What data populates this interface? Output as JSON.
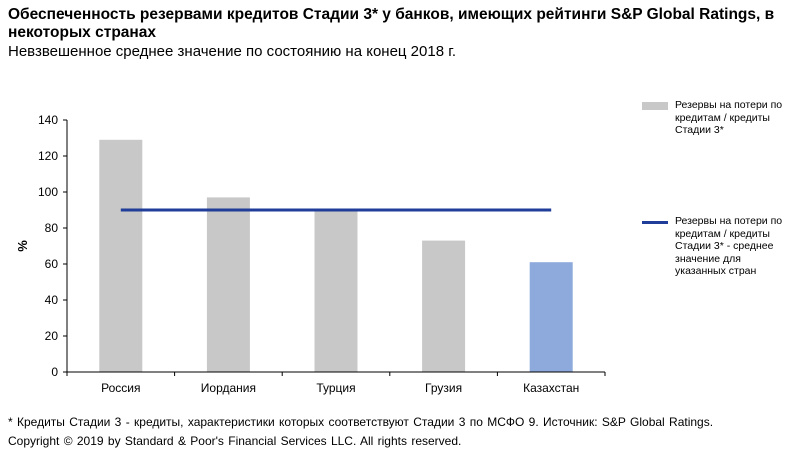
{
  "header": {
    "title": "Обеспеченность резервами кредитов Стадии 3* у банков, имеющих рейтинги S&P Global Ratings, в некоторых странах",
    "subtitle": "Невзвешенное среднее значение по состоянию на конец 2018 г."
  },
  "chart_data": {
    "type": "bar",
    "categories": [
      "Россия",
      "Иордания",
      "Турция",
      "Грузия",
      "Казахстан"
    ],
    "series": [
      {
        "name": "Резервы на потери по кредитам / кредиты Стадии 3*",
        "type": "bar",
        "values": [
          129,
          97,
          90,
          73,
          61
        ],
        "colors": [
          "#c8c8c8",
          "#c8c8c8",
          "#c8c8c8",
          "#c8c8c8",
          "#8eaadc"
        ]
      },
      {
        "name": "Резервы на потери по кредитам / кредиты Стадии 3*  - среднее значение для указанных стран",
        "type": "line",
        "values": [
          90,
          90,
          90,
          90,
          90
        ],
        "color": "#1f3d99"
      }
    ],
    "ylabel": "%",
    "ylim": [
      0,
      140
    ],
    "yticks": [
      0,
      20,
      40,
      60,
      80,
      100,
      120,
      140
    ],
    "grid": false,
    "legend_position": "right"
  },
  "footer": {
    "note": "* Кредиты Стадии 3 - кредиты, характеристики которых соответствуют Стадии 3 по МСФО 9. Источник: S&P Global Ratings.",
    "copyright": "Copyright © 2019 by Standard & Poor's Financial Services LLC. All rights reserved."
  }
}
